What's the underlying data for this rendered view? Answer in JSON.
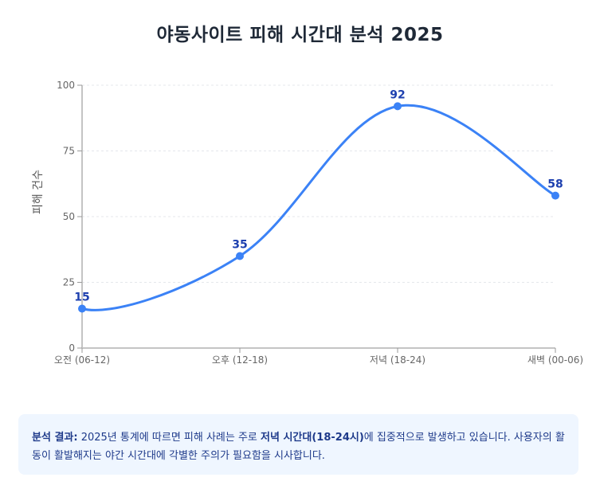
{
  "title": "야동사이트 피해 시간대 분석 2025",
  "chart_data": {
    "type": "line",
    "title": "야동사이트 피해 시간대 분석 2025",
    "categories": [
      "오전 (06-12)",
      "오후 (12-18)",
      "저녁 (18-24)",
      "새벽 (00-06)"
    ],
    "series": [
      {
        "name": "피해 건수",
        "values": [
          15,
          35,
          92,
          58
        ]
      }
    ],
    "xlabel": "",
    "ylabel": "피해 건수",
    "ylim": [
      0,
      100
    ],
    "yticks": [
      0,
      25,
      50,
      75,
      100
    ],
    "grid": true,
    "data_labels": true,
    "smooth": true,
    "colors": {
      "line": "#3b82f6",
      "label": "#1e40af"
    }
  },
  "insight": {
    "label": "분석 결과:",
    "text_before": " 2025년 통계에 따르면 피해 사례는 주로 ",
    "highlight": "저녁 시간대(18-24시)",
    "text_after": "에 집중적으로 발생하고 있습니다. 사용자의 활동이 활발해지는 야간 시간대에 각별한 주의가 필요함을 시사합니다."
  }
}
